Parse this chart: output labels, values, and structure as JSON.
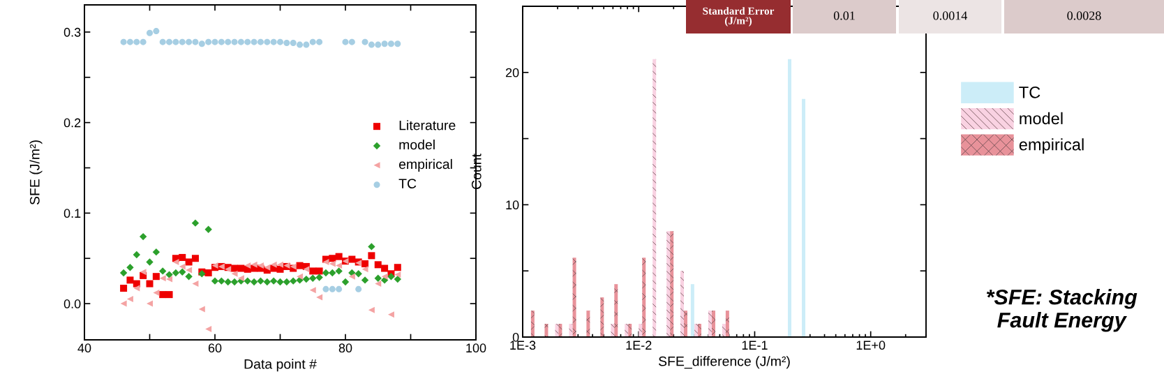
{
  "chart_data": [
    {
      "type": "scatter",
      "xlabel": "Data point #",
      "ylabel": "SFE (J/m²)",
      "x": [
        46,
        47,
        48,
        49,
        50,
        51,
        52,
        53,
        54,
        55,
        56,
        57,
        58,
        59,
        60,
        61,
        62,
        63,
        64,
        65,
        66,
        67,
        68,
        69,
        70,
        71,
        72,
        73,
        74,
        75,
        76,
        77,
        78,
        79,
        80,
        81,
        82,
        83,
        84,
        85,
        86,
        87,
        88
      ],
      "series": [
        {
          "name": "Literature",
          "color": "#ee0000",
          "marker": "square",
          "values": [
            0.017,
            0.026,
            0.022,
            0.031,
            0.022,
            0.03,
            0.01,
            0.01,
            0.05,
            0.051,
            0.046,
            0.05,
            0.035,
            0.034,
            0.04,
            0.041,
            0.04,
            0.039,
            0.039,
            0.038,
            0.039,
            0.039,
            0.037,
            0.039,
            0.038,
            0.041,
            0.039,
            0.042,
            0.041,
            0.036,
            0.036,
            0.049,
            0.05,
            0.052,
            0.047,
            0.049,
            0.046,
            0.044,
            0.053,
            0.043,
            0.039,
            0.033,
            0.04
          ]
        },
        {
          "name": "model",
          "color": "#2ca02c",
          "marker": "diamond",
          "values": [
            0.034,
            0.04,
            0.054,
            0.074,
            0.046,
            0.057,
            0.036,
            0.032,
            0.034,
            0.035,
            0.03,
            0.089,
            0.033,
            0.082,
            0.025,
            0.025,
            0.024,
            0.024,
            0.025,
            0.025,
            0.024,
            0.025,
            0.024,
            0.025,
            0.024,
            0.024,
            0.025,
            0.026,
            0.027,
            0.028,
            0.029,
            0.034,
            0.034,
            0.036,
            0.024,
            0.034,
            0.033,
            0.026,
            0.063,
            0.028,
            0.026,
            0.03,
            0.027
          ]
        },
        {
          "name": "empirical",
          "color": "#f4a3a3",
          "marker": "triangle",
          "values": [
            0.0,
            0.005,
            0.017,
            0.035,
            0.0,
            0.012,
            0.028,
            0.027,
            0.046,
            0.041,
            0.037,
            0.022,
            -0.006,
            -0.028,
            0.042,
            0.041,
            0.038,
            0.033,
            0.028,
            0.042,
            0.043,
            0.042,
            0.04,
            0.043,
            0.043,
            0.042,
            0.041,
            0.03,
            0.038,
            0.015,
            0.007,
            0.046,
            0.044,
            0.042,
            0.047,
            0.03,
            0.045,
            0.038,
            -0.007,
            0.022,
            0.03,
            -0.012,
            0.032
          ]
        },
        {
          "name": "TC",
          "color": "#a6cee3",
          "marker": "circle",
          "values": [
            0.289,
            0.289,
            0.289,
            0.289,
            0.299,
            0.301,
            0.289,
            0.289,
            0.289,
            0.289,
            0.289,
            0.289,
            0.287,
            0.289,
            0.289,
            0.289,
            0.289,
            0.289,
            0.289,
            0.289,
            0.289,
            0.289,
            0.289,
            0.289,
            0.289,
            0.288,
            0.288,
            0.286,
            0.286,
            0.289,
            0.289,
            0.016,
            0.016,
            0.016,
            0.289,
            0.289,
            0.016,
            0.289,
            0.286,
            0.286,
            0.287,
            0.287,
            0.287
          ]
        }
      ],
      "xlim": [
        40,
        100
      ],
      "xticks": [
        40,
        {
          "value": 50,
          "label": null
        },
        60,
        {
          "value": 70,
          "label": null
        },
        80,
        {
          "value": 90,
          "label": null
        },
        100
      ],
      "ylim": [
        -0.04,
        0.33
      ],
      "yticks": [
        {
          "value": 0,
          "label": "0.0"
        },
        {
          "value": 0.05,
          "label": null
        },
        0.1,
        {
          "value": 0.15,
          "label": null
        },
        0.2,
        {
          "value": 0.25,
          "label": null
        },
        0.3
      ],
      "grid": false,
      "legend": "center right"
    },
    {
      "type": "bar",
      "xlabel": "SFE_difference (J/m²)",
      "ylabel": "Count",
      "log": "x",
      "series": [
        {
          "name": "model",
          "color": "#f9d2e2",
          "x": [
            0.00197,
            0.0026,
            0.00596,
            0.00785,
            0.01035,
            0.01365,
            0.018,
            0.0237,
            0.0313,
            0.0412,
            0.0543
          ],
          "values": [
            1,
            1,
            1,
            1,
            1,
            21,
            8,
            5,
            1,
            2,
            1
          ]
        },
        {
          "name": "empirical",
          "color": "#e8929a",
          "x": [
            0.00122,
            0.0016,
            0.00211,
            0.00279,
            0.00367,
            0.00484,
            0.00638,
            0.00841,
            0.0111,
            0.0193,
            0.0254,
            0.0335,
            0.0442,
            0.0582
          ],
          "values": [
            2,
            1,
            1,
            6,
            2,
            3,
            4,
            1,
            6,
            8,
            2,
            1,
            2,
            2
          ]
        },
        {
          "name": "TC",
          "color": "#ccedf8",
          "x": [
            0.0291,
            0.2,
            0.264
          ],
          "values": [
            4,
            21,
            18
          ]
        }
      ],
      "xlim": [
        0.001,
        3
      ],
      "xticks": [
        {
          "value": 0.001,
          "label": "1E-3"
        },
        {
          "value": 0.01,
          "label": "1E-2"
        },
        {
          "value": 0.1,
          "label": "1E-1"
        },
        {
          "value": 1,
          "label": "1E+0"
        }
      ],
      "ylim": [
        0,
        25
      ],
      "yticks": [
        0,
        {
          "value": 5,
          "label": null
        },
        10,
        {
          "value": 15,
          "label": null
        },
        20
      ],
      "grid": false,
      "legend": "right",
      "annotations": [
        "*SFE: Stacking Fault Energy"
      ]
    },
    {
      "type": "other",
      "annotations": [
        "Standard Error\n(J/m²)",
        "0.01",
        "0.0014",
        "0.0028"
      ],
      "colors": [
        "#962d30",
        "#dccbcb",
        "#ece4e4",
        "#dccbcb"
      ]
    }
  ]
}
